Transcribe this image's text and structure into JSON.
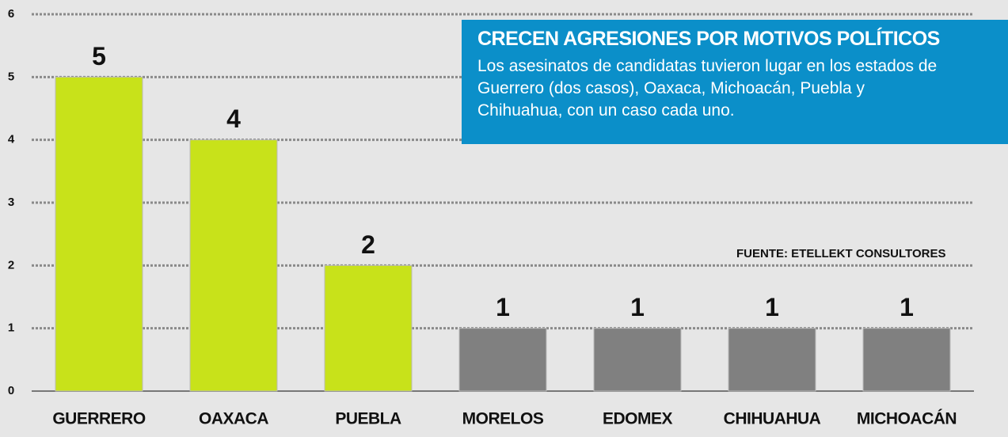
{
  "chart_data": {
    "type": "bar",
    "title": "CRECEN AGRESIONES POR MOTIVOS POLÍTICOS",
    "subtitle": "Los asesinatos de candidatas tuvieron lugar en los estados de Guerrero (dos casos), Oaxaca, Michoacán, Puebla y Chihuahua, con un caso cada uno.",
    "source": "FUENTE: ETELLEKT CONSULTORES",
    "categories": [
      "GUERRERO",
      "OAXACA",
      "PUEBLA",
      "MORELOS",
      "EDOMEX",
      "CHIHUAHUA",
      "MICHOACÁN"
    ],
    "values": [
      5,
      4,
      2,
      1,
      1,
      1,
      1
    ],
    "colors": [
      "#c8e21a",
      "#c8e21a",
      "#c8e21a",
      "#808080",
      "#808080",
      "#808080",
      "#808080"
    ],
    "ylim": [
      0,
      6
    ],
    "yticks": [
      0,
      1,
      2,
      3,
      4,
      5,
      6
    ],
    "grid": true
  }
}
